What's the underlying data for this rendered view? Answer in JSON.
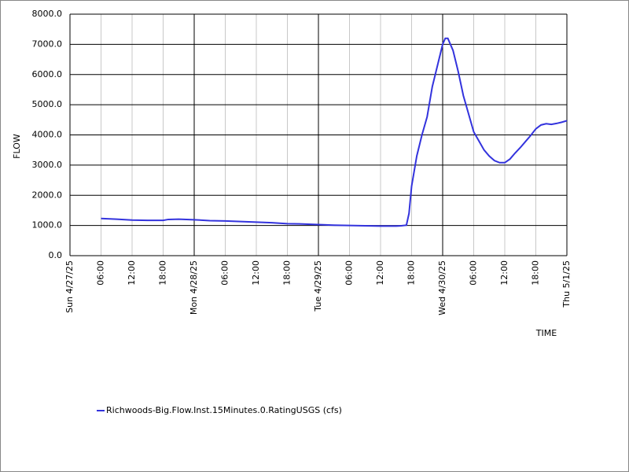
{
  "chart_data": {
    "type": "line",
    "y_label": "FLOW",
    "x_label": "TIME",
    "xlim": [
      "2025-04-27T00:00",
      "2025-05-01T00:00"
    ],
    "ylim": [
      0,
      8000
    ],
    "xticks": [
      {
        "value": "2025-04-27T00:00",
        "label": "Sun 4/27/25"
      },
      {
        "value": "2025-04-27T06:00",
        "label": "06:00"
      },
      {
        "value": "2025-04-27T12:00",
        "label": "12:00"
      },
      {
        "value": "2025-04-27T18:00",
        "label": "18:00"
      },
      {
        "value": "2025-04-28T00:00",
        "label": "Mon 4/28/25"
      },
      {
        "value": "2025-04-28T06:00",
        "label": "06:00"
      },
      {
        "value": "2025-04-28T12:00",
        "label": "12:00"
      },
      {
        "value": "2025-04-28T18:00",
        "label": "18:00"
      },
      {
        "value": "2025-04-29T00:00",
        "label": "Tue 4/29/25"
      },
      {
        "value": "2025-04-29T06:00",
        "label": "06:00"
      },
      {
        "value": "2025-04-29T12:00",
        "label": "12:00"
      },
      {
        "value": "2025-04-29T18:00",
        "label": "18:00"
      },
      {
        "value": "2025-04-30T00:00",
        "label": "Wed 4/30/25"
      },
      {
        "value": "2025-04-30T06:00",
        "label": "06:00"
      },
      {
        "value": "2025-04-30T12:00",
        "label": "12:00"
      },
      {
        "value": "2025-04-30T18:00",
        "label": "18:00"
      },
      {
        "value": "2025-05-01T00:00",
        "label": "Thu 5/1/25"
      }
    ],
    "yticks": [
      {
        "value": 0,
        "label": "0.0"
      },
      {
        "value": 1000,
        "label": "1000.0"
      },
      {
        "value": 2000,
        "label": "2000.0"
      },
      {
        "value": 3000,
        "label": "3000.0"
      },
      {
        "value": 4000,
        "label": "4000.0"
      },
      {
        "value": 5000,
        "label": "5000.0"
      },
      {
        "value": 6000,
        "label": "6000.0"
      },
      {
        "value": 7000,
        "label": "7000.0"
      },
      {
        "value": 8000,
        "label": "8000.0"
      }
    ],
    "grid": true,
    "x": [
      "2025-04-27T06:00",
      "2025-04-27T09:00",
      "2025-04-27T12:00",
      "2025-04-27T15:00",
      "2025-04-27T18:00",
      "2025-04-27T19:00",
      "2025-04-27T21:00",
      "2025-04-28T00:00",
      "2025-04-28T03:00",
      "2025-04-28T06:00",
      "2025-04-28T09:00",
      "2025-04-28T12:00",
      "2025-04-28T15:00",
      "2025-04-28T18:00",
      "2025-04-28T21:00",
      "2025-04-29T00:00",
      "2025-04-29T03:00",
      "2025-04-29T06:00",
      "2025-04-29T09:00",
      "2025-04-29T12:00",
      "2025-04-29T15:00",
      "2025-04-29T16:00",
      "2025-04-29T17:00",
      "2025-04-29T17:30",
      "2025-04-29T18:00",
      "2025-04-29T19:00",
      "2025-04-29T20:00",
      "2025-04-29T21:00",
      "2025-04-29T22:00",
      "2025-04-29T23:00",
      "2025-04-30T00:00",
      "2025-04-30T00:30",
      "2025-04-30T01:00",
      "2025-04-30T02:00",
      "2025-04-30T03:00",
      "2025-04-30T04:00",
      "2025-04-30T05:00",
      "2025-04-30T06:00",
      "2025-04-30T07:00",
      "2025-04-30T08:00",
      "2025-04-30T09:00",
      "2025-04-30T10:00",
      "2025-04-30T11:00",
      "2025-04-30T12:00",
      "2025-04-30T13:00",
      "2025-04-30T14:00",
      "2025-04-30T15:00",
      "2025-04-30T16:00",
      "2025-04-30T17:00",
      "2025-04-30T18:00",
      "2025-04-30T19:00",
      "2025-04-30T20:00",
      "2025-04-30T21:00",
      "2025-04-30T22:00",
      "2025-04-30T23:00",
      "2025-05-01T00:00"
    ],
    "series": [
      {
        "name": "Richwoods-Big.Flow.Inst.15Minutes.0.RatingUSGS (cfs)",
        "color": "#3333dd",
        "values": [
          1230,
          1210,
          1180,
          1170,
          1170,
          1200,
          1210,
          1190,
          1160,
          1150,
          1130,
          1110,
          1090,
          1060,
          1050,
          1030,
          1010,
          1000,
          990,
          980,
          980,
          990,
          1010,
          1400,
          2300,
          3300,
          4000,
          4600,
          5600,
          6300,
          7000,
          7200,
          7200,
          6800,
          6100,
          5300,
          4700,
          4100,
          3800,
          3500,
          3300,
          3150,
          3080,
          3080,
          3200,
          3400,
          3580,
          3780,
          3980,
          4200,
          4330,
          4370,
          4350,
          4380,
          4420,
          4470
        ]
      }
    ]
  }
}
